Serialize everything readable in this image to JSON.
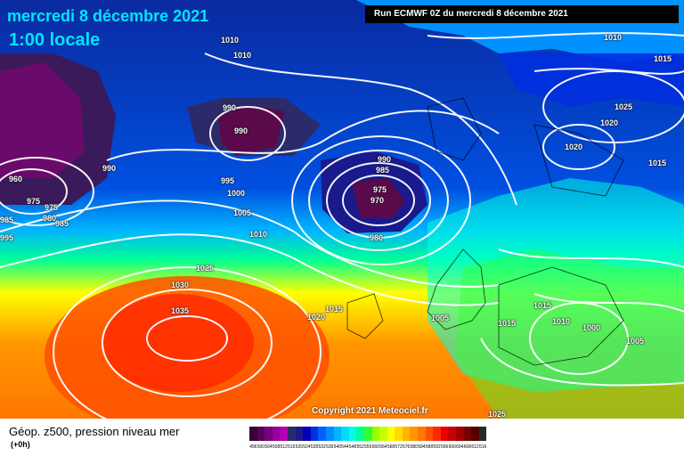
{
  "title": {
    "date": "mercredi 8 décembre 2021",
    "time": "1:00 locale"
  },
  "run_info": "Run ECMWF 0Z du mercredi 8 décembre 2021",
  "copyright": "Copyright 2021 Meteociel.fr",
  "legend": {
    "title": "Géop. z500, pression niveau mer",
    "subtitle": "(+0h)",
    "scale_values": [
      "496",
      "500",
      "504",
      "508",
      "512",
      "516",
      "520",
      "524",
      "528",
      "532",
      "536",
      "540",
      "544",
      "548",
      "552",
      "556",
      "560",
      "564",
      "568",
      "572",
      "576",
      "580",
      "584",
      "588",
      "592",
      "596",
      "600",
      "604",
      "608",
      "612",
      "616"
    ],
    "scale_colors": [
      "#3a003a",
      "#5a005a",
      "#7a007a",
      "#9a009a",
      "#b000b0",
      "#2b2b6b",
      "#1a1a8c",
      "#0000b4",
      "#0030e0",
      "#0060ff",
      "#008cff",
      "#00b4ff",
      "#00dcff",
      "#00ffe0",
      "#00ff96",
      "#32ff32",
      "#96ff00",
      "#c8ff00",
      "#ffff00",
      "#ffdc00",
      "#ffb400",
      "#ff9600",
      "#ff7800",
      "#ff5000",
      "#ff2800",
      "#e60000",
      "#c80000",
      "#a00000",
      "#780000",
      "#500000",
      "#282828"
    ]
  },
  "pressure_labels": [
    {
      "id": "l1010a",
      "value": "1010"
    },
    {
      "id": "l1010b",
      "value": "1010"
    },
    {
      "id": "l990a",
      "value": "990"
    },
    {
      "id": "l990b",
      "value": "990"
    },
    {
      "id": "l990c",
      "value": "990"
    },
    {
      "id": "l960",
      "value": "960"
    },
    {
      "id": "l975a",
      "value": "975"
    },
    {
      "id": "l975b",
      "value": "975"
    },
    {
      "id": "l980a",
      "value": "980"
    },
    {
      "id": "l985a",
      "value": "985"
    },
    {
      "id": "l985b",
      "value": "985"
    },
    {
      "id": "l995a",
      "value": "995"
    },
    {
      "id": "l995b",
      "value": "995"
    },
    {
      "id": "l1000",
      "value": "1000"
    },
    {
      "id": "l1005a",
      "value": "1005"
    },
    {
      "id": "l1010c",
      "value": "1010"
    },
    {
      "id": "l990d",
      "value": "990"
    },
    {
      "id": "l985c",
      "value": "985"
    },
    {
      "id": "l975c",
      "value": "975"
    },
    {
      "id": "l970",
      "value": "970"
    },
    {
      "id": "l980b",
      "value": "980"
    },
    {
      "id": "l1025a",
      "value": "1025"
    },
    {
      "id": "l1030",
      "value": "1030"
    },
    {
      "id": "l1035",
      "value": "1035"
    },
    {
      "id": "l1020a",
      "value": "1020"
    },
    {
      "id": "l1015a",
      "value": "1015"
    },
    {
      "id": "l1005b",
      "value": "1005"
    },
    {
      "id": "l1015b",
      "value": "1015"
    },
    {
      "id": "l1015c",
      "value": "1015"
    },
    {
      "id": "l1010d",
      "value": "1010"
    },
    {
      "id": "l1000b",
      "value": "1000"
    },
    {
      "id": "l1005c",
      "value": "1005"
    },
    {
      "id": "l1025b",
      "value": "1025"
    },
    {
      "id": "l1010e",
      "value": "1010"
    },
    {
      "id": "l1015d",
      "value": "1015"
    },
    {
      "id": "l1025c",
      "value": "1025"
    },
    {
      "id": "l1020b",
      "value": "1020"
    },
    {
      "id": "l1020c",
      "value": "1020"
    },
    {
      "id": "l1015e",
      "value": "1015"
    }
  ]
}
